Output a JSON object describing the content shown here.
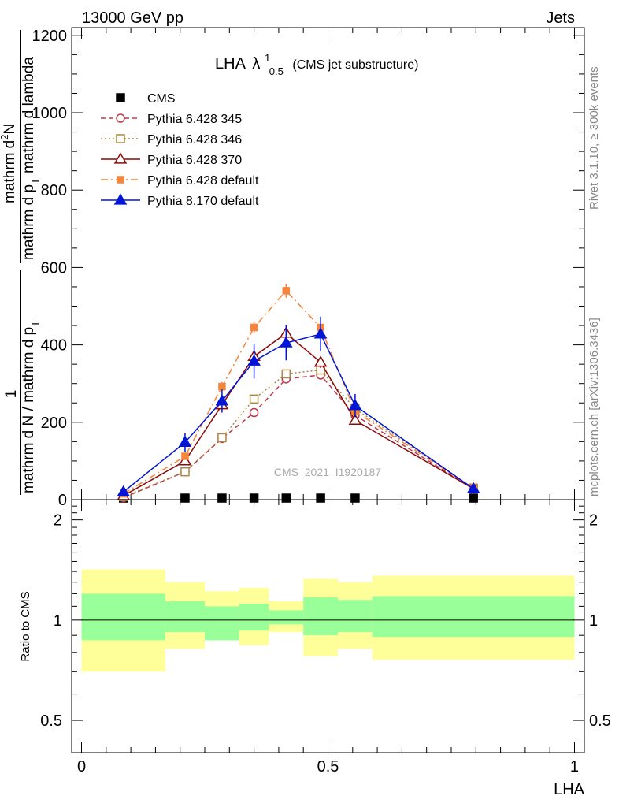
{
  "header": {
    "left": "13000 GeV pp",
    "right": "Jets"
  },
  "side_labels": {
    "rivet": "Rivet 3.1.10, ≥ 300k events",
    "mcplots": "mcplots.cern.ch [arXiv:1306.3436]"
  },
  "watermark": "CMS_2021_I1920187",
  "colors": {
    "CMS": "#000000",
    "Pythia 6.428 345": "#c0394b",
    "Pythia 6.428 346": "#a98845",
    "Pythia 6.428 370": "#8b0a0a",
    "Pythia 6.428 default": "#f5843c",
    "Pythia 8.170 default": "#0015d6",
    "band_inner": "#99ff99",
    "band_outer": "#ffff99"
  },
  "chart_data": [
    {
      "type": "line",
      "title": "LHA",
      "title_math": "λ",
      "title_sup": "1",
      "title_sub": "0.5",
      "title_suffix": "(CMS jet substructure)",
      "xlabel": "",
      "ylabel": "1 / mathrm d N / mathrm d p_T mathrm d^2N / mathrm d p_T mathrm d lambda",
      "ylabel_lines": {
        "frac_num": "1",
        "frac_den": "mathrm d N / mathrm d p",
        "frac_den_sub": "T",
        "main_num": "mathrm d",
        "main_num_sup": "2",
        "main_num_tail": "N",
        "main_den": "mathrm d p",
        "main_den_sub": "T",
        "main_den_tail": "mathrm d lambda"
      },
      "xlim": [
        -0.02,
        1.02
      ],
      "ylim": [
        0,
        1220
      ],
      "y_ticks": [
        "0",
        "200",
        "400",
        "600",
        "800",
        "1000",
        "1200"
      ],
      "legend_position": "top-left",
      "series": [
        {
          "name": "CMS",
          "style": "solid-square",
          "x": [
            0.085,
            0.21,
            0.285,
            0.35,
            0.415,
            0.485,
            0.555,
            0.795
          ],
          "y": [
            4,
            4,
            4,
            4,
            4,
            4,
            4,
            4
          ],
          "err": [
            0,
            0,
            0,
            0,
            0,
            0,
            0,
            0
          ]
        },
        {
          "name": "Pythia 6.428 345",
          "style": "dashed-circle",
          "x": [
            0.085,
            0.21,
            0.285,
            0.35,
            0.415,
            0.485,
            0.555,
            0.795
          ],
          "y": [
            5,
            72,
            158,
            225,
            312,
            322,
            218,
            28
          ],
          "err": [
            0,
            4,
            6,
            8,
            10,
            10,
            6,
            2
          ]
        },
        {
          "name": "Pythia 6.428 346",
          "style": "dotted-square",
          "x": [
            0.085,
            0.21,
            0.285,
            0.35,
            0.415,
            0.485,
            0.555,
            0.795
          ],
          "y": [
            8,
            72,
            160,
            260,
            325,
            335,
            235,
            30
          ],
          "err": [
            0,
            4,
            6,
            8,
            10,
            10,
            6,
            2
          ]
        },
        {
          "name": "Pythia 6.428 370",
          "style": "solid-triangle-open",
          "x": [
            0.085,
            0.21,
            0.285,
            0.35,
            0.415,
            0.485,
            0.555,
            0.795
          ],
          "y": [
            10,
            100,
            245,
            370,
            430,
            355,
            205,
            28
          ],
          "err": [
            0,
            8,
            12,
            15,
            18,
            15,
            10,
            2
          ]
        },
        {
          "name": "Pythia 6.428 default",
          "style": "dashdot-square-filled",
          "x": [
            0.085,
            0.21,
            0.285,
            0.35,
            0.415,
            0.485,
            0.555,
            0.795
          ],
          "y": [
            15,
            112,
            292,
            445,
            540,
            445,
            228,
            30
          ],
          "err": [
            0,
            8,
            12,
            15,
            18,
            15,
            10,
            2
          ]
        },
        {
          "name": "Pythia 8.170 default",
          "style": "solid-triangle-filled",
          "x": [
            0.085,
            0.21,
            0.285,
            0.35,
            0.415,
            0.485,
            0.555,
            0.795
          ],
          "y": [
            20,
            148,
            255,
            358,
            405,
            428,
            243,
            28
          ],
          "err": [
            0,
            25,
            30,
            45,
            45,
            45,
            30,
            2
          ]
        }
      ]
    },
    {
      "type": "area",
      "ylabel": "Ratio to CMS",
      "xlabel": "LHA",
      "xlim": [
        -0.02,
        1.02
      ],
      "ylim": [
        0.4,
        2.3
      ],
      "x_ticks": [
        "0",
        "0.5",
        "1"
      ],
      "y_ticks": [
        "0.5",
        "1",
        "2"
      ],
      "reference_line": 1,
      "bands": [
        {
          "x": [
            0.0,
            0.17
          ],
          "inner": [
            0.87,
            1.2
          ],
          "outer": [
            0.7,
            1.42
          ]
        },
        {
          "x": [
            0.17,
            0.25
          ],
          "inner": [
            0.92,
            1.14
          ],
          "outer": [
            0.82,
            1.3
          ]
        },
        {
          "x": [
            0.25,
            0.32
          ],
          "inner": [
            0.87,
            1.1
          ],
          "outer": [
            0.87,
            1.22
          ]
        },
        {
          "x": [
            0.32,
            0.38
          ],
          "inner": [
            0.93,
            1.12
          ],
          "outer": [
            0.84,
            1.25
          ]
        },
        {
          "x": [
            0.38,
            0.45
          ],
          "inner": [
            0.97,
            1.07
          ],
          "outer": [
            0.92,
            1.14
          ]
        },
        {
          "x": [
            0.45,
            0.52
          ],
          "inner": [
            0.9,
            1.17
          ],
          "outer": [
            0.78,
            1.33
          ]
        },
        {
          "x": [
            0.52,
            0.59
          ],
          "inner": [
            0.92,
            1.15
          ],
          "outer": [
            0.82,
            1.3
          ]
        },
        {
          "x": [
            0.59,
            1.0
          ],
          "inner": [
            0.89,
            1.18
          ],
          "outer": [
            0.76,
            1.36
          ]
        }
      ]
    }
  ]
}
